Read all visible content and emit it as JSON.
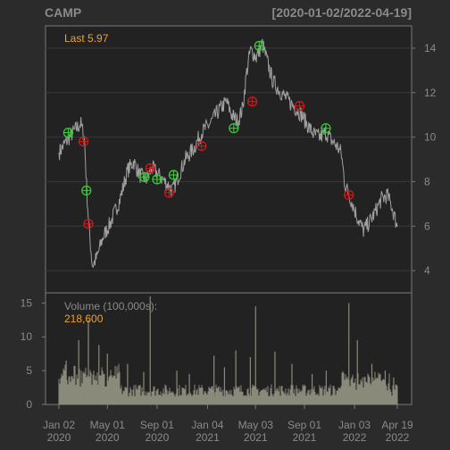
{
  "chart_data": {
    "type": "line",
    "title": "CAMP",
    "date_range": "[2020-01-02/2022-04-19]",
    "x_ticks": [
      {
        "top": "Jan 02",
        "bottom": "2020",
        "date": "2020-01-02"
      },
      {
        "top": "May 01",
        "bottom": "2020",
        "date": "2020-05-01"
      },
      {
        "top": "Sep 01",
        "bottom": "2020",
        "date": "2020-09-01"
      },
      {
        "top": "Jan 04",
        "bottom": "2021",
        "date": "2021-01-04"
      },
      {
        "top": "May 03",
        "bottom": "2021",
        "date": "2021-05-03"
      },
      {
        "top": "Sep 01",
        "bottom": "2021",
        "date": "2021-09-01"
      },
      {
        "top": "Jan 03",
        "bottom": "2022",
        "date": "2022-01-03"
      },
      {
        "top": "Apr 19",
        "bottom": "2022",
        "date": "2022-04-19"
      }
    ],
    "price_panel": {
      "legend": "Last 5.97",
      "ylim": [
        3.0,
        15.0
      ],
      "yticks": [
        4,
        6,
        8,
        10,
        12,
        14
      ],
      "grid": true,
      "series": [
        [
          "2020-01-02",
          9.3
        ],
        [
          "2020-01-20",
          9.8
        ],
        [
          "2020-02-10",
          10.3
        ],
        [
          "2020-02-25",
          10.6
        ],
        [
          "2020-03-05",
          10.0
        ],
        [
          "2020-03-12",
          7.2
        ],
        [
          "2020-03-18",
          5.6
        ],
        [
          "2020-03-25",
          4.2
        ],
        [
          "2020-04-05",
          4.6
        ],
        [
          "2020-04-20",
          5.5
        ],
        [
          "2020-05-10",
          6.2
        ],
        [
          "2020-06-01",
          7.2
        ],
        [
          "2020-06-20",
          8.5
        ],
        [
          "2020-07-05",
          8.9
        ],
        [
          "2020-07-20",
          8.3
        ],
        [
          "2020-08-05",
          8.1
        ],
        [
          "2020-08-20",
          8.6
        ],
        [
          "2020-09-05",
          8.3
        ],
        [
          "2020-09-25",
          7.9
        ],
        [
          "2020-10-10",
          7.6
        ],
        [
          "2020-10-25",
          8.3
        ],
        [
          "2020-11-10",
          9.0
        ],
        [
          "2020-12-01",
          9.5
        ],
        [
          "2020-12-20",
          10.2
        ],
        [
          "2021-01-10",
          10.6
        ],
        [
          "2021-02-01",
          11.2
        ],
        [
          "2021-02-20",
          11.6
        ],
        [
          "2021-03-05",
          11.0
        ],
        [
          "2021-03-20",
          10.7
        ],
        [
          "2021-04-01",
          11.3
        ],
        [
          "2021-04-10",
          12.8
        ],
        [
          "2021-04-20",
          13.9
        ],
        [
          "2021-05-05",
          13.6
        ],
        [
          "2021-05-20",
          14.2
        ],
        [
          "2021-06-01",
          13.4
        ],
        [
          "2021-06-15",
          12.5
        ],
        [
          "2021-07-01",
          12.1
        ],
        [
          "2021-07-20",
          11.7
        ],
        [
          "2021-08-10",
          11.3
        ],
        [
          "2021-08-25",
          11.0
        ],
        [
          "2021-09-10",
          10.5
        ],
        [
          "2021-09-25",
          10.1
        ],
        [
          "2021-10-10",
          10.0
        ],
        [
          "2021-10-25",
          10.2
        ],
        [
          "2021-11-05",
          9.9
        ],
        [
          "2021-11-20",
          9.6
        ],
        [
          "2021-12-01",
          9.3
        ],
        [
          "2021-12-10",
          7.9
        ],
        [
          "2021-12-25",
          7.2
        ],
        [
          "2022-01-10",
          6.4
        ],
        [
          "2022-01-25",
          5.8
        ],
        [
          "2022-02-10",
          6.2
        ],
        [
          "2022-02-25",
          6.7
        ],
        [
          "2022-03-10",
          7.2
        ],
        [
          "2022-03-25",
          7.4
        ],
        [
          "2022-04-05",
          6.9
        ],
        [
          "2022-04-19",
          5.97
        ]
      ],
      "buy_signals": [
        [
          "2020-01-25",
          10.2
        ],
        [
          "2020-03-10",
          7.6
        ],
        [
          "2020-08-01",
          8.2
        ],
        [
          "2020-09-01",
          8.1
        ],
        [
          "2020-10-12",
          8.3
        ],
        [
          "2021-03-10",
          10.4
        ],
        [
          "2021-05-12",
          14.1
        ],
        [
          "2021-10-24",
          10.4
        ]
      ],
      "sell_signals": [
        [
          "2020-03-03",
          9.8
        ],
        [
          "2020-03-15",
          6.1
        ],
        [
          "2020-08-15",
          8.6
        ],
        [
          "2020-10-01",
          7.5
        ],
        [
          "2020-12-20",
          9.6
        ],
        [
          "2021-04-25",
          11.6
        ],
        [
          "2021-08-20",
          11.4
        ],
        [
          "2021-12-20",
          7.4
        ]
      ],
      "colors": {
        "line": "#a0a0a0",
        "buy": "#33cc33",
        "sell": "#cc1a1a",
        "legend": "#f0a030"
      }
    },
    "volume_panel": {
      "label": "Volume (100,000s):",
      "value": "218,600",
      "ylim": [
        0,
        16.5
      ],
      "yticks": [
        0,
        5,
        10,
        15
      ],
      "spikes": [
        [
          "2020-01-20",
          6.5
        ],
        [
          "2020-02-20",
          9.5
        ],
        [
          "2020-03-15",
          12.5
        ],
        [
          "2020-04-10",
          8.8
        ],
        [
          "2020-05-01",
          7.5
        ],
        [
          "2020-06-20",
          6.0
        ],
        [
          "2020-07-30",
          4.8
        ],
        [
          "2020-08-15",
          16.0
        ],
        [
          "2020-10-20",
          5.0
        ],
        [
          "2020-11-20",
          4.5
        ],
        [
          "2021-01-20",
          7.2
        ],
        [
          "2021-02-15",
          5.5
        ],
        [
          "2021-03-15",
          8.0
        ],
        [
          "2021-04-20",
          7.0
        ],
        [
          "2021-05-03",
          14.5
        ],
        [
          "2021-06-20",
          7.8
        ],
        [
          "2021-08-01",
          6.0
        ],
        [
          "2021-09-20",
          4.5
        ],
        [
          "2021-10-25",
          5.0
        ],
        [
          "2021-12-20",
          15.0
        ],
        [
          "2022-01-10",
          9.5
        ],
        [
          "2022-02-15",
          6.0
        ],
        [
          "2022-03-20",
          5.0
        ],
        [
          "2022-04-10",
          4.0
        ]
      ],
      "colors": {
        "bar": "#8a8a7a",
        "legend_value": "#f0a030"
      }
    }
  }
}
